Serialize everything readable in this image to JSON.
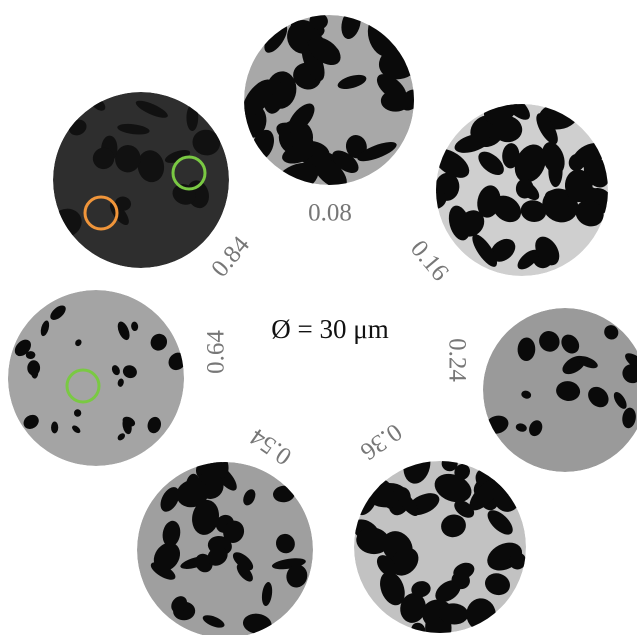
{
  "scale_label": "Ø = 30 μm",
  "samples": [
    {
      "label": "0.08"
    },
    {
      "label": "0.16"
    },
    {
      "label": "0.24"
    },
    {
      "label": "0.36"
    },
    {
      "label": "0.54"
    },
    {
      "label": "0.64"
    },
    {
      "label": "0.84"
    }
  ]
}
